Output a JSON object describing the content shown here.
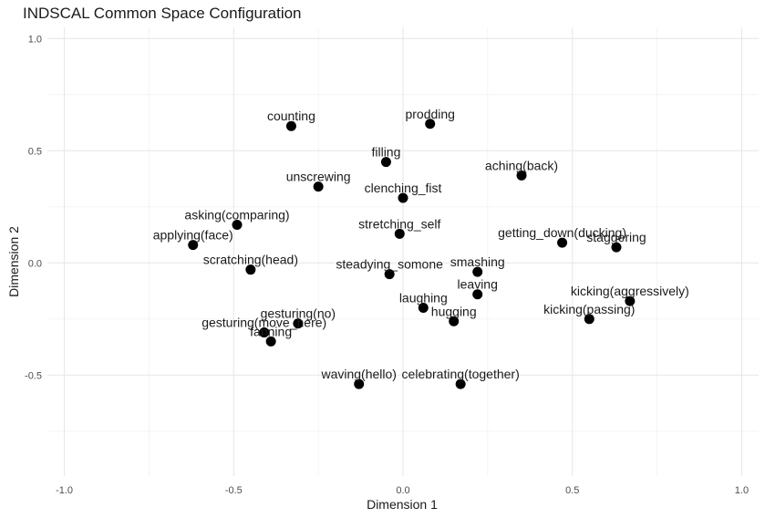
{
  "chart_data": {
    "type": "scatter",
    "title": "INDSCAL Common Space Configuration",
    "xlabel": "Dimension 1",
    "ylabel": "Dimension 2",
    "xlim": [
      -1.05,
      1.05
    ],
    "ylim": [
      -0.95,
      1.05
    ],
    "x_ticks": [
      -1.0,
      -0.5,
      0.0,
      0.5,
      1.0
    ],
    "x_tick_labels": [
      "-1.0",
      "-0.5",
      "0.0",
      "0.5",
      "1.0"
    ],
    "y_ticks": [
      -0.5,
      0.0,
      0.5,
      1.0
    ],
    "y_tick_labels": [
      "-0.5",
      "0.0",
      "0.5",
      "1.0"
    ],
    "grid": true,
    "point_color": "#000000",
    "points": [
      {
        "label": "counting",
        "x": -0.33,
        "y": 0.61
      },
      {
        "label": "prodding",
        "x": 0.08,
        "y": 0.62
      },
      {
        "label": "filling",
        "x": -0.05,
        "y": 0.45
      },
      {
        "label": "aching(back)",
        "x": 0.35,
        "y": 0.39
      },
      {
        "label": "unscrewing",
        "x": -0.25,
        "y": 0.34
      },
      {
        "label": "clenching_fist",
        "x": 0.0,
        "y": 0.29
      },
      {
        "label": "asking(comparing)",
        "x": -0.49,
        "y": 0.17
      },
      {
        "label": "stretching_self",
        "x": -0.01,
        "y": 0.13
      },
      {
        "label": "applying(face)",
        "x": -0.62,
        "y": 0.08
      },
      {
        "label": "getting_down(ducking)",
        "x": 0.47,
        "y": 0.09
      },
      {
        "label": "staggering",
        "x": 0.63,
        "y": 0.07
      },
      {
        "label": "scratching(head)",
        "x": -0.45,
        "y": -0.03
      },
      {
        "label": "smashing",
        "x": 0.22,
        "y": -0.04
      },
      {
        "label": "steadying_somone",
        "x": -0.04,
        "y": -0.05
      },
      {
        "label": "leaving",
        "x": 0.22,
        "y": -0.14
      },
      {
        "label": "kicking(aggressively)",
        "x": 0.67,
        "y": -0.17
      },
      {
        "label": "laughing",
        "x": 0.06,
        "y": -0.2
      },
      {
        "label": "kicking(passing)",
        "x": 0.55,
        "y": -0.25
      },
      {
        "label": "hugging",
        "x": 0.15,
        "y": -0.26
      },
      {
        "label": "gesturing(no)",
        "x": -0.31,
        "y": -0.27
      },
      {
        "label": "gesturing(move_here)",
        "x": -0.41,
        "y": -0.31
      },
      {
        "label": "fanning",
        "x": -0.39,
        "y": -0.35
      },
      {
        "label": "waving(hello)",
        "x": -0.13,
        "y": -0.54
      },
      {
        "label": "celebrating(together)",
        "x": 0.17,
        "y": -0.54
      }
    ]
  }
}
